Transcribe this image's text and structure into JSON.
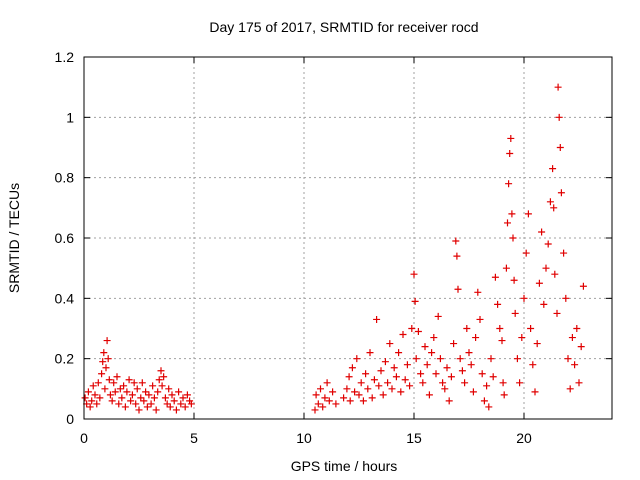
{
  "chart_data": {
    "type": "scatter",
    "title": "Day 175 of 2017, SRMTID for receiver rocd",
    "xlabel": "GPS time / hours",
    "ylabel": "SRMTID / TECUs",
    "xlim": [
      0,
      24
    ],
    "ylim": [
      0,
      1.2
    ],
    "grid": true,
    "x_ticks": [
      0,
      5,
      10,
      15,
      20
    ],
    "x_tick_labels": [
      "0",
      "5",
      "10",
      "15",
      "20"
    ],
    "y_ticks": [
      0,
      0.2,
      0.4,
      0.6,
      0.8,
      1,
      1.2
    ],
    "y_tick_labels": [
      "0",
      "0.2",
      "0.4",
      "0.6",
      "0.8",
      "1",
      "1.2"
    ],
    "marker": "+",
    "marker_color": "#e00000",
    "series": [
      {
        "name": "SRMTID",
        "points": [
          [
            0.05,
            0.07
          ],
          [
            0.12,
            0.05
          ],
          [
            0.2,
            0.09
          ],
          [
            0.28,
            0.04
          ],
          [
            0.35,
            0.06
          ],
          [
            0.42,
            0.11
          ],
          [
            0.5,
            0.08
          ],
          [
            0.58,
            0.05
          ],
          [
            0.65,
            0.12
          ],
          [
            0.72,
            0.07
          ],
          [
            0.8,
            0.15
          ],
          [
            0.85,
            0.19
          ],
          [
            0.9,
            0.22
          ],
          [
            0.95,
            0.1
          ],
          [
            1.0,
            0.17
          ],
          [
            1.05,
            0.26
          ],
          [
            1.1,
            0.2
          ],
          [
            1.15,
            0.13
          ],
          [
            1.2,
            0.08
          ],
          [
            1.28,
            0.06
          ],
          [
            1.35,
            0.12
          ],
          [
            1.42,
            0.09
          ],
          [
            1.5,
            0.14
          ],
          [
            1.58,
            0.05
          ],
          [
            1.65,
            0.1
          ],
          [
            1.72,
            0.07
          ],
          [
            1.8,
            0.11
          ],
          [
            1.88,
            0.04
          ],
          [
            1.95,
            0.09
          ],
          [
            2.05,
            0.13
          ],
          [
            2.12,
            0.06
          ],
          [
            2.2,
            0.08
          ],
          [
            2.28,
            0.12
          ],
          [
            2.35,
            0.05
          ],
          [
            2.42,
            0.1
          ],
          [
            2.5,
            0.03
          ],
          [
            2.58,
            0.07
          ],
          [
            2.65,
            0.12
          ],
          [
            2.72,
            0.06
          ],
          [
            2.8,
            0.09
          ],
          [
            2.88,
            0.04
          ],
          [
            2.95,
            0.08
          ],
          [
            3.05,
            0.05
          ],
          [
            3.12,
            0.11
          ],
          [
            3.2,
            0.07
          ],
          [
            3.28,
            0.03
          ],
          [
            3.35,
            0.09
          ],
          [
            3.42,
            0.13
          ],
          [
            3.5,
            0.16
          ],
          [
            3.55,
            0.11
          ],
          [
            3.62,
            0.14
          ],
          [
            3.7,
            0.07
          ],
          [
            3.78,
            0.05
          ],
          [
            3.85,
            0.1
          ],
          [
            3.92,
            0.04
          ],
          [
            4.0,
            0.08
          ],
          [
            4.1,
            0.06
          ],
          [
            4.2,
            0.03
          ],
          [
            4.3,
            0.09
          ],
          [
            4.4,
            0.05
          ],
          [
            4.5,
            0.07
          ],
          [
            4.6,
            0.04
          ],
          [
            4.7,
            0.08
          ],
          [
            4.8,
            0.06
          ],
          [
            4.88,
            0.05
          ],
          [
            10.5,
            0.03
          ],
          [
            10.55,
            0.08
          ],
          [
            10.65,
            0.05
          ],
          [
            10.75,
            0.1
          ],
          [
            10.85,
            0.04
          ],
          [
            10.95,
            0.07
          ],
          [
            11.05,
            0.12
          ],
          [
            11.15,
            0.06
          ],
          [
            11.3,
            0.09
          ],
          [
            11.45,
            0.05
          ],
          [
            11.8,
            0.07
          ],
          [
            11.95,
            0.1
          ],
          [
            12.05,
            0.14
          ],
          [
            12.1,
            0.06
          ],
          [
            12.2,
            0.17
          ],
          [
            12.3,
            0.09
          ],
          [
            12.4,
            0.2
          ],
          [
            12.5,
            0.08
          ],
          [
            12.6,
            0.12
          ],
          [
            12.7,
            0.06
          ],
          [
            12.8,
            0.15
          ],
          [
            12.9,
            0.1
          ],
          [
            13.0,
            0.22
          ],
          [
            13.1,
            0.07
          ],
          [
            13.2,
            0.13
          ],
          [
            13.3,
            0.33
          ],
          [
            13.4,
            0.11
          ],
          [
            13.5,
            0.16
          ],
          [
            13.6,
            0.08
          ],
          [
            13.7,
            0.19
          ],
          [
            13.8,
            0.12
          ],
          [
            13.9,
            0.25
          ],
          [
            14.0,
            0.1
          ],
          [
            14.1,
            0.17
          ],
          [
            14.2,
            0.14
          ],
          [
            14.3,
            0.22
          ],
          [
            14.4,
            0.09
          ],
          [
            14.5,
            0.28
          ],
          [
            14.6,
            0.13
          ],
          [
            14.7,
            0.18
          ],
          [
            14.8,
            0.11
          ],
          [
            14.9,
            0.3
          ],
          [
            15.0,
            0.48
          ],
          [
            15.05,
            0.39
          ],
          [
            15.1,
            0.2
          ],
          [
            15.2,
            0.29
          ],
          [
            15.3,
            0.15
          ],
          [
            15.4,
            0.12
          ],
          [
            15.5,
            0.24
          ],
          [
            15.6,
            0.18
          ],
          [
            15.7,
            0.08
          ],
          [
            15.8,
            0.22
          ],
          [
            15.9,
            0.27
          ],
          [
            16.0,
            0.15
          ],
          [
            16.1,
            0.34
          ],
          [
            16.2,
            0.2
          ],
          [
            16.3,
            0.12
          ],
          [
            16.4,
            0.1
          ],
          [
            16.5,
            0.17
          ],
          [
            16.6,
            0.06
          ],
          [
            16.7,
            0.14
          ],
          [
            16.8,
            0.25
          ],
          [
            16.9,
            0.59
          ],
          [
            16.95,
            0.54
          ],
          [
            17.0,
            0.43
          ],
          [
            17.1,
            0.2
          ],
          [
            17.2,
            0.16
          ],
          [
            17.3,
            0.12
          ],
          [
            17.4,
            0.3
          ],
          [
            17.5,
            0.22
          ],
          [
            17.6,
            0.18
          ],
          [
            17.7,
            0.09
          ],
          [
            17.8,
            0.27
          ],
          [
            17.9,
            0.42
          ],
          [
            18.0,
            0.33
          ],
          [
            18.1,
            0.15
          ],
          [
            18.2,
            0.06
          ],
          [
            18.3,
            0.11
          ],
          [
            18.4,
            0.04
          ],
          [
            18.5,
            0.2
          ],
          [
            18.6,
            0.14
          ],
          [
            18.7,
            0.47
          ],
          [
            18.8,
            0.38
          ],
          [
            18.9,
            0.3
          ],
          [
            19.0,
            0.26
          ],
          [
            19.05,
            0.12
          ],
          [
            19.1,
            0.08
          ],
          [
            19.2,
            0.5
          ],
          [
            19.25,
            0.65
          ],
          [
            19.3,
            0.78
          ],
          [
            19.35,
            0.88
          ],
          [
            19.4,
            0.93
          ],
          [
            19.45,
            0.68
          ],
          [
            19.5,
            0.6
          ],
          [
            19.55,
            0.46
          ],
          [
            19.6,
            0.35
          ],
          [
            19.7,
            0.2
          ],
          [
            19.8,
            0.12
          ],
          [
            19.9,
            0.27
          ],
          [
            20.0,
            0.4
          ],
          [
            20.1,
            0.55
          ],
          [
            20.2,
            0.68
          ],
          [
            20.3,
            0.3
          ],
          [
            20.4,
            0.18
          ],
          [
            20.5,
            0.09
          ],
          [
            20.6,
            0.25
          ],
          [
            20.7,
            0.45
          ],
          [
            20.8,
            0.62
          ],
          [
            20.9,
            0.38
          ],
          [
            21.0,
            0.5
          ],
          [
            21.1,
            0.58
          ],
          [
            21.2,
            0.72
          ],
          [
            21.3,
            0.83
          ],
          [
            21.35,
            0.7
          ],
          [
            21.4,
            0.48
          ],
          [
            21.5,
            0.35
          ],
          [
            21.55,
            1.1
          ],
          [
            21.6,
            1.0
          ],
          [
            21.65,
            0.9
          ],
          [
            21.7,
            0.75
          ],
          [
            21.8,
            0.55
          ],
          [
            21.9,
            0.4
          ],
          [
            22.0,
            0.2
          ],
          [
            22.1,
            0.1
          ],
          [
            22.2,
            0.27
          ],
          [
            22.3,
            0.18
          ],
          [
            22.4,
            0.3
          ],
          [
            22.5,
            0.12
          ],
          [
            22.6,
            0.24
          ],
          [
            22.7,
            0.44
          ]
        ]
      }
    ]
  }
}
